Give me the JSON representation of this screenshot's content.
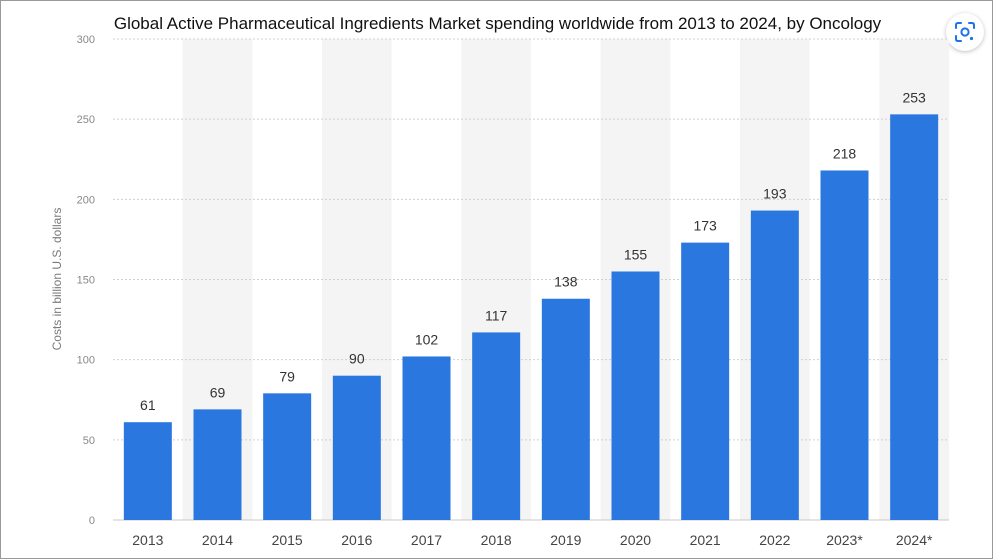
{
  "chart_data": {
    "type": "bar",
    "title": "Global Active Pharmaceutical Ingredients Market spending worldwide from 2013 to 2024, by Oncology",
    "xlabel": "",
    "ylabel": "Costs in billion U.S. dollars",
    "categories": [
      "2013",
      "2014",
      "2015",
      "2016",
      "2017",
      "2018",
      "2019",
      "2020",
      "2021",
      "2022",
      "2023*",
      "2024*"
    ],
    "values": [
      61,
      69,
      79,
      90,
      102,
      117,
      138,
      155,
      173,
      193,
      218,
      253
    ],
    "ylim": [
      0,
      300
    ],
    "yticks": [
      0,
      50,
      100,
      150,
      200,
      250,
      300
    ],
    "grid": true,
    "bar_color": "#2a78df",
    "band_color": "#f4f4f4"
  },
  "toolbar": {
    "lens_icon": "google-lens-icon"
  }
}
